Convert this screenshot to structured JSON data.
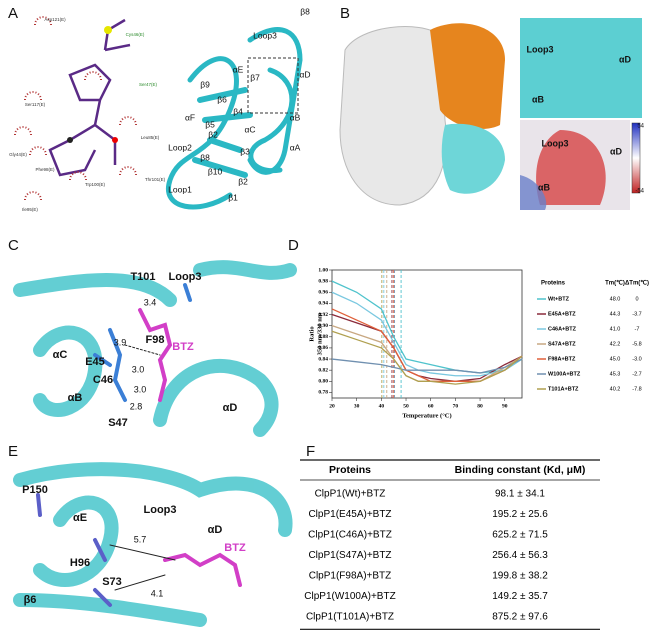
{
  "panel_letters": [
    "A",
    "B",
    "C",
    "D",
    "E",
    "F"
  ],
  "panel_a": {
    "residues": [
      "Asp121(E)",
      "Cys46(E)",
      "Ser47(E)",
      "Ser117(E)",
      "Gly44(E)",
      "Leu85(E)",
      "Phe98(E)",
      "Trp100(E)",
      "Thr101(E)",
      "Ile95(E)"
    ],
    "labels": [
      "Loop3",
      "β8",
      "αE",
      "β7",
      "αD",
      "β9",
      "β6",
      "β4",
      "αF",
      "β5",
      "αC",
      "αB",
      "β2",
      "αA",
      "Loop2",
      "β8",
      "β3",
      "β10",
      "β2",
      "Loop1",
      "β1"
    ]
  },
  "panel_b": {
    "labels": [
      "Loop3",
      "αD",
      "αB",
      "Loop3",
      "αD",
      "αB"
    ],
    "scale": [
      "54",
      "-54"
    ]
  },
  "panel_c": {
    "labels": [
      "T101",
      "Loop3",
      "3.4",
      "3.9",
      "F98",
      "E45",
      "BTZ",
      "αC",
      "C46",
      "3.0",
      "3.0",
      "αB",
      "2.8",
      "αD",
      "S47"
    ]
  },
  "panel_d": {
    "labels": [
      "P150",
      "Loop3",
      "αE",
      "αD",
      "5.7",
      "H96",
      "BTZ",
      "β6",
      "S73",
      "4.1"
    ]
  },
  "chart_data": {
    "type": "line",
    "y_label": [
      "Ratio",
      "350 nm/330 nm"
    ],
    "x_label": "Temperature (°C)",
    "x": [
      20,
      30,
      40,
      45,
      50,
      55,
      60,
      70,
      80,
      90,
      97
    ],
    "xlim": [
      20,
      97
    ],
    "xticks": [
      20,
      30,
      40,
      50,
      60,
      70,
      80,
      90
    ],
    "ylim": [
      0.77,
      1.0
    ],
    "yticks": [
      0.78,
      {
        "value": 0.8,
        "label": "0.80"
      },
      0.82,
      0.84,
      0.86,
      0.88,
      {
        "value": 0.9,
        "label": "0.90"
      },
      0.92,
      0.94,
      0.96,
      0.98,
      {
        "value": 1.0,
        "label": "1.00"
      }
    ],
    "legend_header": [
      "Proteins",
      "Tm(℃)",
      "ΔTm(℃)"
    ],
    "series": [
      {
        "name": "Wt+BTZ",
        "color": "#4fc3cc",
        "values": [
          0.98,
          0.96,
          0.93,
          0.88,
          0.84,
          0.835,
          0.83,
          0.82,
          0.815,
          0.82,
          0.84
        ]
      },
      {
        "name": "E45A+BTZ",
        "color": "#8b2a3a",
        "values": [
          0.92,
          0.905,
          0.89,
          0.86,
          0.82,
          0.81,
          0.805,
          0.8,
          0.805,
          0.83,
          0.845
        ]
      },
      {
        "name": "C46A+BTZ",
        "color": "#7ac8e0",
        "values": [
          0.96,
          0.94,
          0.91,
          0.87,
          0.83,
          0.82,
          0.815,
          0.81,
          0.81,
          0.82,
          0.84
        ]
      },
      {
        "name": "S47A+BTZ",
        "color": "#c8a882",
        "values": [
          0.9,
          0.885,
          0.87,
          0.84,
          0.81,
          0.8,
          0.8,
          0.8,
          0.8,
          0.825,
          0.845
        ]
      },
      {
        "name": "F98A+BTZ",
        "color": "#e0603a",
        "values": [
          0.93,
          0.91,
          0.89,
          0.86,
          0.82,
          0.81,
          0.8,
          0.8,
          0.8,
          0.82,
          0.845
        ]
      },
      {
        "name": "W100A+BTZ",
        "color": "#7090b0",
        "values": [
          0.84,
          0.835,
          0.83,
          0.825,
          0.82,
          0.82,
          0.82,
          0.82,
          0.815,
          0.825,
          0.84
        ]
      },
      {
        "name": "T101A+BTZ",
        "color": "#b0a050",
        "values": [
          0.89,
          0.875,
          0.86,
          0.84,
          0.81,
          0.8,
          0.8,
          0.795,
          0.8,
          0.82,
          0.845
        ]
      }
    ],
    "tm": [
      48,
      44.3,
      41,
      42.2,
      45,
      45.3,
      40.2
    ],
    "tm_labels": [
      "48.0",
      "44.3",
      "41.0",
      "42.2",
      "45.0",
      "45.3",
      "40.2"
    ],
    "delta_tm": [
      "0",
      "-3.7",
      "-7",
      "-5.8",
      "-3.0",
      "-2.7",
      "-7.8"
    ]
  },
  "table": {
    "header": [
      "Proteins",
      "Binding constant (Kd, μM)"
    ],
    "rows": [
      [
        "ClpP1(Wt)+BTZ",
        "98.1 ± 34.1"
      ],
      [
        "ClpP1(E45A)+BTZ",
        "195.2 ± 25.6"
      ],
      [
        "ClpP1(C46A)+BTZ",
        "625.2 ± 71.5"
      ],
      [
        "ClpP1(S47A)+BTZ",
        "256.4 ± 56.3"
      ],
      [
        "ClpP1(F98A)+BTZ",
        "199.8 ± 38.2"
      ],
      [
        "ClpP1(W100A)+BTZ",
        "149.2 ± 35.7"
      ],
      [
        "ClpP1(T101A)+BTZ",
        "875.2 ± 97.6"
      ]
    ]
  }
}
